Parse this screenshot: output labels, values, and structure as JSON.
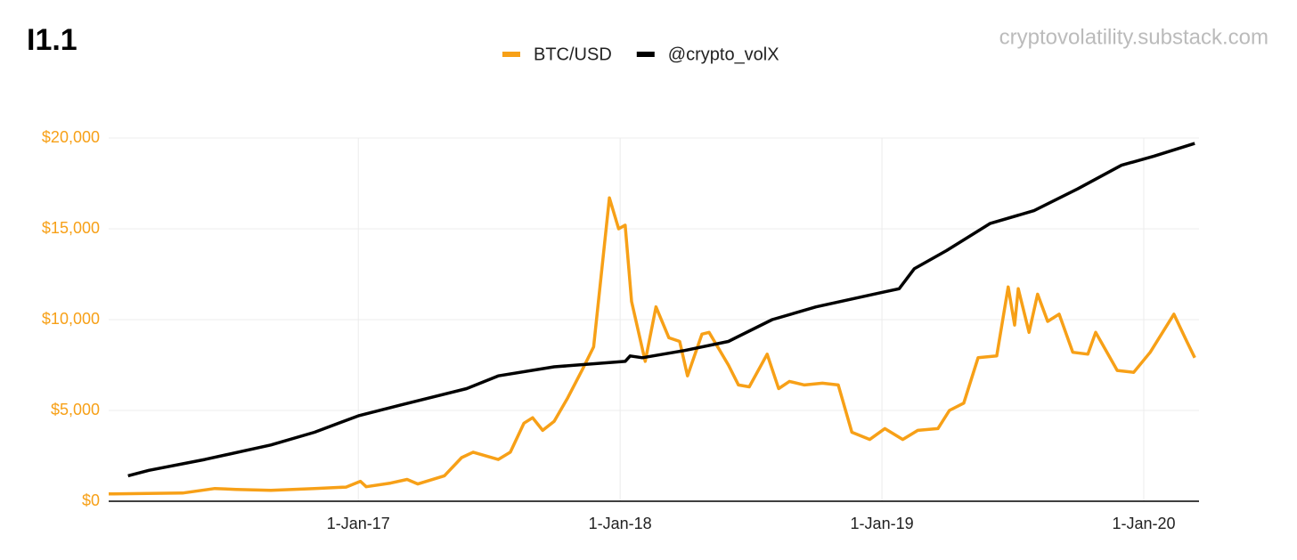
{
  "chart_data": {
    "type": "line",
    "title": "I1.1",
    "watermark": "cryptovolatility.substack.com",
    "xlim": [
      "2016-01-19",
      "2020-03-18"
    ],
    "xticks": [
      {
        "value": "2017-01-01",
        "label": "1-Jan-17"
      },
      {
        "value": "2018-01-01",
        "label": "1-Jan-18"
      },
      {
        "value": "2019-01-01",
        "label": "1-Jan-19"
      },
      {
        "value": "2020-01-01",
        "label": "1-Jan-20"
      }
    ],
    "ylim": [
      0,
      20000
    ],
    "yticks": [
      {
        "value": 0,
        "label": "$0"
      },
      {
        "value": 5000,
        "label": "$5,000"
      },
      {
        "value": 10000,
        "label": "$10,000"
      },
      {
        "value": 15000,
        "label": "$15,000"
      },
      {
        "value": 20000,
        "label": "$20,000"
      }
    ],
    "grid": true,
    "legend": "top",
    "series": [
      {
        "name": "BTC/USD",
        "color": "#f7a017",
        "x": [
          "2016-01-19",
          "2016-03-01",
          "2016-05-01",
          "2016-06-15",
          "2016-07-15",
          "2016-09-01",
          "2016-11-01",
          "2016-12-15",
          "2017-01-04",
          "2017-01-12",
          "2017-02-15",
          "2017-03-10",
          "2017-03-25",
          "2017-05-01",
          "2017-05-25",
          "2017-06-10",
          "2017-07-15",
          "2017-08-01",
          "2017-08-20",
          "2017-09-01",
          "2017-09-15",
          "2017-10-01",
          "2017-10-20",
          "2017-11-10",
          "2017-11-25",
          "2017-12-17",
          "2017-12-30",
          "2018-01-08",
          "2018-01-17",
          "2018-02-05",
          "2018-02-20",
          "2018-03-10",
          "2018-03-25",
          "2018-04-05",
          "2018-04-25",
          "2018-05-05",
          "2018-06-01",
          "2018-06-15",
          "2018-06-30",
          "2018-07-25",
          "2018-08-10",
          "2018-08-25",
          "2018-09-15",
          "2018-10-10",
          "2018-11-01",
          "2018-11-20",
          "2018-12-15",
          "2019-01-05",
          "2019-01-30",
          "2019-02-20",
          "2019-03-20",
          "2019-04-05",
          "2019-04-25",
          "2019-05-15",
          "2019-06-10",
          "2019-06-26",
          "2019-07-05",
          "2019-07-10",
          "2019-07-25",
          "2019-08-06",
          "2019-08-20",
          "2019-09-05",
          "2019-09-24",
          "2019-10-15",
          "2019-10-26",
          "2019-11-25",
          "2019-12-18",
          "2020-01-10",
          "2020-02-12",
          "2020-03-01",
          "2020-03-12"
        ],
        "values": [
          400,
          420,
          450,
          700,
          650,
          600,
          700,
          780,
          1100,
          800,
          1000,
          1200,
          950,
          1400,
          2400,
          2700,
          2300,
          2700,
          4300,
          4600,
          3900,
          4400,
          5700,
          7300,
          8500,
          16700,
          15000,
          15200,
          11000,
          7700,
          10700,
          9000,
          8800,
          6900,
          9200,
          9300,
          7500,
          6400,
          6300,
          8100,
          6200,
          6600,
          6400,
          6500,
          6400,
          3800,
          3400,
          4000,
          3400,
          3900,
          4000,
          5000,
          5400,
          7900,
          8000,
          11800,
          9700,
          11700,
          9300,
          11400,
          9900,
          10300,
          8200,
          8100,
          9300,
          7200,
          7100,
          8200,
          10300,
          8800,
          7900
        ]
      },
      {
        "name": "@crypto_volX",
        "color": "#000000",
        "x": [
          "2016-02-15",
          "2016-03-15",
          "2016-06-01",
          "2016-09-01",
          "2016-11-01",
          "2017-01-01",
          "2017-03-01",
          "2017-06-01",
          "2017-07-15",
          "2017-10-01",
          "2018-01-08",
          "2018-01-15",
          "2018-02-01",
          "2018-04-01",
          "2018-06-01",
          "2018-08-01",
          "2018-10-01",
          "2019-01-01",
          "2019-01-25",
          "2019-02-15",
          "2019-04-01",
          "2019-06-01",
          "2019-08-01",
          "2019-10-01",
          "2019-12-01",
          "2020-01-15",
          "2020-03-12"
        ],
        "values": [
          1400,
          1700,
          2300,
          3100,
          3800,
          4700,
          5300,
          6200,
          6900,
          7400,
          7700,
          8000,
          7900,
          8300,
          8800,
          10000,
          10700,
          11500,
          11700,
          12800,
          13800,
          15300,
          16000,
          17200,
          18500,
          19000,
          19700
        ]
      }
    ]
  }
}
